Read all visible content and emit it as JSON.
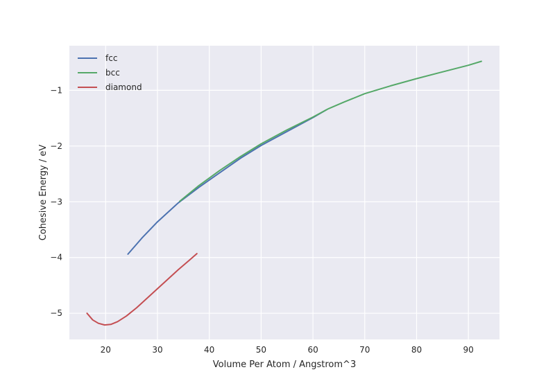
{
  "chart_data": {
    "type": "line",
    "title": "",
    "xlabel": "Volume Per Atom / Angstrom^3",
    "ylabel": "Cohesive Energy / eV",
    "xlim": [
      13.0,
      96.0
    ],
    "ylim": [
      -5.47,
      -0.2
    ],
    "xticks": [
      20,
      30,
      40,
      50,
      60,
      70,
      80,
      90
    ],
    "yticks": [
      -5,
      -4,
      -3,
      -2,
      -1
    ],
    "ytick_labels": [
      "−5",
      "−4",
      "−3",
      "−2",
      "−1"
    ],
    "grid": true,
    "legend_position": "top-left",
    "series": [
      {
        "name": "fcc",
        "color": "#4c72b0",
        "points": [
          [
            24.3,
            -3.94
          ],
          [
            27,
            -3.65
          ],
          [
            30,
            -3.36
          ],
          [
            34,
            -3.02
          ],
          [
            38,
            -2.74
          ],
          [
            42,
            -2.48
          ],
          [
            46,
            -2.22
          ],
          [
            50,
            -1.99
          ],
          [
            55,
            -1.74
          ],
          [
            60,
            -1.49
          ],
          [
            62.6,
            -1.35
          ]
        ]
      },
      {
        "name": "bcc",
        "color": "#55a868",
        "points": [
          [
            34.3,
            -2.99
          ],
          [
            38,
            -2.71
          ],
          [
            42,
            -2.44
          ],
          [
            46,
            -2.19
          ],
          [
            50,
            -1.96
          ],
          [
            55,
            -1.71
          ],
          [
            60,
            -1.48
          ],
          [
            63,
            -1.33
          ],
          [
            66,
            -1.21
          ],
          [
            70,
            -1.06
          ],
          [
            75,
            -0.92
          ],
          [
            80,
            -0.79
          ],
          [
            85,
            -0.67
          ],
          [
            90,
            -0.55
          ],
          [
            92.5,
            -0.48
          ]
        ]
      },
      {
        "name": "diamond",
        "color": "#c44e52",
        "points": [
          [
            16.4,
            -5.0
          ],
          [
            17.5,
            -5.12
          ],
          [
            18.6,
            -5.18
          ],
          [
            19.8,
            -5.21
          ],
          [
            21,
            -5.2
          ],
          [
            22.3,
            -5.15
          ],
          [
            24,
            -5.05
          ],
          [
            26,
            -4.9
          ],
          [
            28,
            -4.73
          ],
          [
            30,
            -4.56
          ],
          [
            32,
            -4.39
          ],
          [
            34,
            -4.22
          ],
          [
            36,
            -4.06
          ],
          [
            37.6,
            -3.93
          ]
        ]
      }
    ]
  }
}
